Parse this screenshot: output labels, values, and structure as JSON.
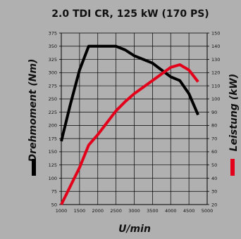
{
  "chart_data": {
    "type": "line",
    "title": "2.0 TDI CR, 125 kW (170 PS)",
    "xlabel": "U/min",
    "ylabel_left": "Drehmoment (Nm)",
    "ylabel_right": "Leistung (kW)",
    "xlim": [
      1000,
      5000
    ],
    "ylim_left": [
      50,
      375
    ],
    "ylim_right": [
      20,
      150
    ],
    "x_ticks": [
      1000,
      1500,
      2000,
      2500,
      3000,
      3500,
      4000,
      4500,
      5000
    ],
    "y_left_ticks": [
      50,
      75,
      100,
      125,
      150,
      175,
      200,
      225,
      250,
      275,
      300,
      325,
      350,
      375
    ],
    "y_right_ticks": [
      20,
      30,
      40,
      50,
      60,
      70,
      80,
      90,
      100,
      110,
      120,
      130,
      140,
      150
    ],
    "grid": true,
    "series": [
      {
        "axis": "left",
        "color": "#000000",
        "points": [
          [
            1000,
            170
          ],
          [
            1250,
            240
          ],
          [
            1500,
            305
          ],
          [
            1750,
            350
          ],
          [
            2000,
            350
          ],
          [
            2250,
            350
          ],
          [
            2500,
            350
          ],
          [
            2750,
            343
          ],
          [
            3000,
            332
          ],
          [
            3250,
            325
          ],
          [
            3500,
            318
          ],
          [
            3750,
            305
          ],
          [
            4000,
            292
          ],
          [
            4250,
            285
          ],
          [
            4500,
            260
          ],
          [
            4750,
            220
          ]
        ]
      },
      {
        "axis": "right",
        "color": "#e2001a",
        "points": [
          [
            1000,
            20
          ],
          [
            1250,
            34
          ],
          [
            1500,
            48
          ],
          [
            1750,
            65
          ],
          [
            2000,
            73
          ],
          [
            2250,
            82
          ],
          [
            2500,
            91
          ],
          [
            2750,
            98
          ],
          [
            3000,
            104
          ],
          [
            3250,
            109
          ],
          [
            3500,
            114
          ],
          [
            3750,
            119
          ],
          [
            4000,
            124
          ],
          [
            4250,
            126
          ],
          [
            4500,
            122
          ],
          [
            4750,
            113
          ]
        ]
      }
    ],
    "legend": "axis-label-markers"
  }
}
